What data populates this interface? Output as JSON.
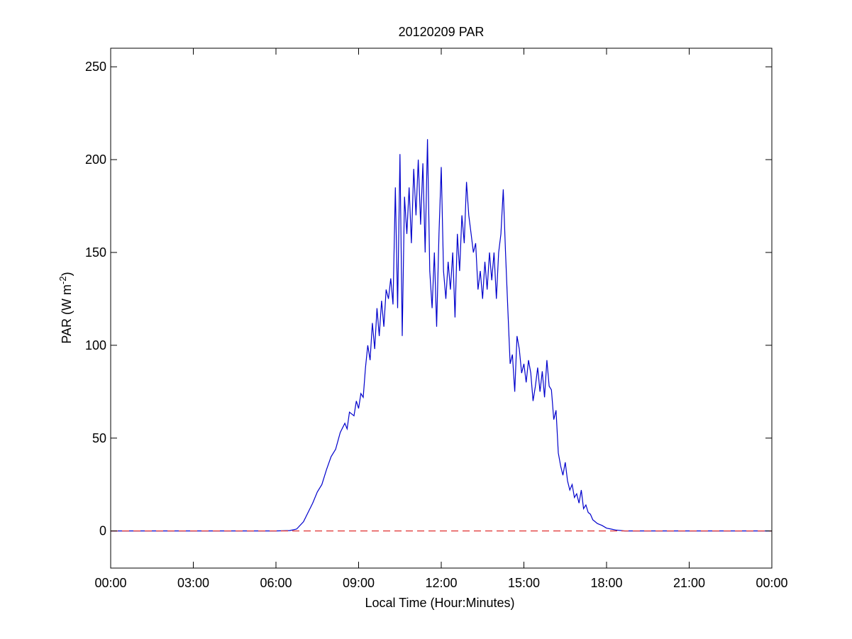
{
  "chart_data": {
    "type": "line",
    "title": "20120209 PAR",
    "xlabel": "Local Time (Hour:Minutes)",
    "ylabel": {
      "prefix": "PAR (W m",
      "superscript": "-2",
      "suffix": ")"
    },
    "xlim": [
      "00:00",
      "24:00"
    ],
    "ylim": [
      -20,
      260
    ],
    "x_ticks": [
      {
        "value": "00:00",
        "label": "00:00"
      },
      {
        "value": "03:00",
        "label": "03:00"
      },
      {
        "value": "06:00",
        "label": "06:00"
      },
      {
        "value": "09:00",
        "label": "09:00"
      },
      {
        "value": "12:00",
        "label": "12:00"
      },
      {
        "value": "15:00",
        "label": "15:00"
      },
      {
        "value": "18:00",
        "label": "18:00"
      },
      {
        "value": "21:00",
        "label": "21:00"
      },
      {
        "value": "24:00",
        "label": "00:00"
      }
    ],
    "y_ticks": [
      0,
      50,
      100,
      150,
      200,
      250
    ],
    "grid": false,
    "series": [
      {
        "color": "#0000cc",
        "line_style": "solid",
        "points": [
          [
            "00:00",
            0
          ],
          [
            "06:00",
            0
          ],
          [
            "06:30",
            0.2
          ],
          [
            "06:45",
            1
          ],
          [
            "07:00",
            5
          ],
          [
            "07:10",
            10
          ],
          [
            "07:20",
            15
          ],
          [
            "07:30",
            21
          ],
          [
            "07:40",
            25
          ],
          [
            "07:50",
            33
          ],
          [
            "08:00",
            40
          ],
          [
            "08:10",
            44
          ],
          [
            "08:20",
            53
          ],
          [
            "08:30",
            58
          ],
          [
            "08:35",
            55
          ],
          [
            "08:40",
            64
          ],
          [
            "08:50",
            62
          ],
          [
            "08:55",
            70
          ],
          [
            "09:00",
            66
          ],
          [
            "09:05",
            74
          ],
          [
            "09:10",
            72
          ],
          [
            "09:15",
            88
          ],
          [
            "09:20",
            100
          ],
          [
            "09:25",
            92
          ],
          [
            "09:30",
            112
          ],
          [
            "09:35",
            98
          ],
          [
            "09:40",
            120
          ],
          [
            "09:45",
            105
          ],
          [
            "09:50",
            124
          ],
          [
            "09:55",
            110
          ],
          [
            "10:00",
            130
          ],
          [
            "10:05",
            125
          ],
          [
            "10:10",
            136
          ],
          [
            "10:15",
            122
          ],
          [
            "10:20",
            185
          ],
          [
            "10:25",
            120
          ],
          [
            "10:30",
            203
          ],
          [
            "10:35",
            105
          ],
          [
            "10:40",
            180
          ],
          [
            "10:45",
            160
          ],
          [
            "10:50",
            185
          ],
          [
            "10:55",
            155
          ],
          [
            "11:00",
            195
          ],
          [
            "11:05",
            170
          ],
          [
            "11:10",
            200
          ],
          [
            "11:15",
            165
          ],
          [
            "11:20",
            198
          ],
          [
            "11:25",
            150
          ],
          [
            "11:30",
            211
          ],
          [
            "11:35",
            140
          ],
          [
            "11:40",
            120
          ],
          [
            "11:45",
            150
          ],
          [
            "11:50",
            110
          ],
          [
            "11:55",
            160
          ],
          [
            "12:00",
            196
          ],
          [
            "12:05",
            140
          ],
          [
            "12:10",
            125
          ],
          [
            "12:15",
            145
          ],
          [
            "12:20",
            130
          ],
          [
            "12:25",
            150
          ],
          [
            "12:30",
            115
          ],
          [
            "12:35",
            160
          ],
          [
            "12:40",
            140
          ],
          [
            "12:45",
            170
          ],
          [
            "12:50",
            155
          ],
          [
            "12:55",
            188
          ],
          [
            "13:00",
            170
          ],
          [
            "13:05",
            160
          ],
          [
            "13:10",
            150
          ],
          [
            "13:15",
            155
          ],
          [
            "13:20",
            130
          ],
          [
            "13:25",
            140
          ],
          [
            "13:30",
            125
          ],
          [
            "13:35",
            145
          ],
          [
            "13:40",
            130
          ],
          [
            "13:45",
            150
          ],
          [
            "13:50",
            135
          ],
          [
            "13:55",
            150
          ],
          [
            "14:00",
            125
          ],
          [
            "14:05",
            150
          ],
          [
            "14:10",
            160
          ],
          [
            "14:15",
            184
          ],
          [
            "14:20",
            150
          ],
          [
            "14:25",
            120
          ],
          [
            "14:30",
            90
          ],
          [
            "14:35",
            95
          ],
          [
            "14:40",
            75
          ],
          [
            "14:45",
            105
          ],
          [
            "14:50",
            98
          ],
          [
            "14:55",
            85
          ],
          [
            "15:00",
            90
          ],
          [
            "15:05",
            80
          ],
          [
            "15:10",
            92
          ],
          [
            "15:15",
            85
          ],
          [
            "15:20",
            70
          ],
          [
            "15:25",
            78
          ],
          [
            "15:30",
            88
          ],
          [
            "15:35",
            75
          ],
          [
            "15:40",
            86
          ],
          [
            "15:45",
            72
          ],
          [
            "15:50",
            92
          ],
          [
            "15:55",
            78
          ],
          [
            "16:00",
            76
          ],
          [
            "16:05",
            60
          ],
          [
            "16:10",
            65
          ],
          [
            "16:15",
            42
          ],
          [
            "16:20",
            35
          ],
          [
            "16:25",
            30
          ],
          [
            "16:30",
            37
          ],
          [
            "16:35",
            27
          ],
          [
            "16:40",
            22
          ],
          [
            "16:45",
            25
          ],
          [
            "16:50",
            18
          ],
          [
            "16:55",
            20
          ],
          [
            "17:00",
            15
          ],
          [
            "17:05",
            22
          ],
          [
            "17:10",
            12
          ],
          [
            "17:15",
            14
          ],
          [
            "17:20",
            10
          ],
          [
            "17:25",
            9
          ],
          [
            "17:30",
            6
          ],
          [
            "17:40",
            4
          ],
          [
            "17:50",
            3
          ],
          [
            "18:00",
            1.5
          ],
          [
            "18:10",
            1
          ],
          [
            "18:20",
            0.5
          ],
          [
            "18:40",
            0
          ],
          [
            "24:00",
            0
          ]
        ]
      },
      {
        "color": "#e03030",
        "line_style": "dashed",
        "points": [
          [
            "00:00",
            0
          ],
          [
            "24:00",
            0
          ]
        ]
      }
    ]
  }
}
